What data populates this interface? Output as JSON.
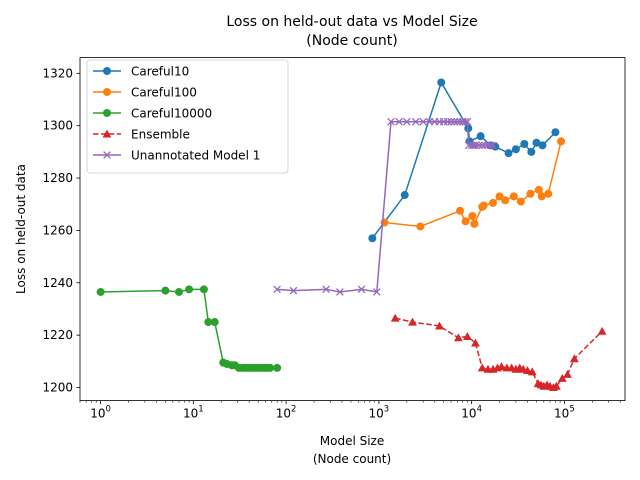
{
  "chart_data": {
    "type": "line",
    "title": [
      "Loss on held-out data vs Model Size",
      "(Node count)"
    ],
    "xlabel": [
      "Model Size",
      "(Node count)"
    ],
    "ylabel": "Loss on held-out data",
    "xscale": "log",
    "xlim": [
      0.6,
      450000
    ],
    "ylim": [
      1195,
      1326
    ],
    "xticks": [
      {
        "value": 1,
        "base": "10",
        "exp": "0"
      },
      {
        "value": 10,
        "base": "10",
        "exp": "1"
      },
      {
        "value": 100,
        "base": "10",
        "exp": "2"
      },
      {
        "value": 1000,
        "base": "10",
        "exp": "3"
      },
      {
        "value": 10000,
        "base": "10",
        "exp": "4"
      },
      {
        "value": 100000,
        "base": "10",
        "exp": "5"
      }
    ],
    "yticks": [
      1200,
      1220,
      1240,
      1260,
      1280,
      1300,
      1320
    ],
    "grid": false,
    "legend_position": "top-left",
    "series": [
      {
        "name": "Careful10",
        "color": "#1f77b4",
        "marker": "circle",
        "dash": "solid",
        "points": [
          [
            850,
            1257
          ],
          [
            1900,
            1273.5
          ],
          [
            4700,
            1316.5
          ],
          [
            9200,
            1299
          ],
          [
            9500,
            1294
          ],
          [
            12500,
            1296
          ],
          [
            16000,
            1292.5
          ],
          [
            18000,
            1292
          ],
          [
            25000,
            1289.5
          ],
          [
            30000,
            1291
          ],
          [
            37000,
            1293
          ],
          [
            44000,
            1290
          ],
          [
            50000,
            1293.5
          ],
          [
            58000,
            1292.5
          ],
          [
            80000,
            1297.5
          ]
        ]
      },
      {
        "name": "Careful100",
        "color": "#ff7f0e",
        "marker": "circle",
        "dash": "solid",
        "points": [
          [
            1150,
            1263
          ],
          [
            2800,
            1261.5
          ],
          [
            7500,
            1267.5
          ],
          [
            8600,
            1263.5
          ],
          [
            10200,
            1265.5
          ],
          [
            10700,
            1262.5
          ],
          [
            13000,
            1269
          ],
          [
            13500,
            1269.5
          ],
          [
            17000,
            1270.5
          ],
          [
            20000,
            1273
          ],
          [
            23000,
            1271.5
          ],
          [
            28500,
            1273
          ],
          [
            34000,
            1271
          ],
          [
            43000,
            1274
          ],
          [
            53000,
            1275.5
          ],
          [
            57000,
            1273
          ],
          [
            67000,
            1274
          ],
          [
            92000,
            1294
          ]
        ]
      },
      {
        "name": "Careful10000",
        "color": "#2ca02c",
        "marker": "circle",
        "dash": "solid",
        "points": [
          [
            1,
            1236.5
          ],
          [
            5,
            1237
          ],
          [
            7,
            1236.5
          ],
          [
            9,
            1237.5
          ],
          [
            13,
            1237.5
          ],
          [
            14.5,
            1225
          ],
          [
            17,
            1225
          ],
          [
            21,
            1209.5
          ],
          [
            23,
            1209
          ],
          [
            26,
            1208.5
          ],
          [
            28,
            1208.5
          ],
          [
            31,
            1207.5
          ],
          [
            34,
            1207.5
          ],
          [
            37,
            1207.5
          ],
          [
            40,
            1207.5
          ],
          [
            43,
            1207.5
          ],
          [
            46,
            1207.5
          ],
          [
            50,
            1207.5
          ],
          [
            54,
            1207.5
          ],
          [
            58,
            1207.5
          ],
          [
            62,
            1207.5
          ],
          [
            67,
            1207.5
          ],
          [
            80,
            1207.5
          ]
        ]
      },
      {
        "name": "Ensemble",
        "color": "#d62728",
        "marker": "triangle",
        "dash": "dashed",
        "points": [
          [
            1500,
            1226.5
          ],
          [
            2300,
            1225
          ],
          [
            4500,
            1223.5
          ],
          [
            7200,
            1219
          ],
          [
            9000,
            1219.5
          ],
          [
            11000,
            1217
          ],
          [
            13000,
            1207.5
          ],
          [
            15000,
            1207
          ],
          [
            17000,
            1207
          ],
          [
            19000,
            1207.5
          ],
          [
            21000,
            1208
          ],
          [
            24000,
            1207.5
          ],
          [
            27000,
            1207.5
          ],
          [
            30000,
            1207
          ],
          [
            33000,
            1207.5
          ],
          [
            36000,
            1207
          ],
          [
            40000,
            1206.5
          ],
          [
            45000,
            1206
          ],
          [
            52000,
            1201.5
          ],
          [
            56000,
            1201
          ],
          [
            60000,
            1200.5
          ],
          [
            65000,
            1201
          ],
          [
            70000,
            1200.5
          ],
          [
            76000,
            1200
          ],
          [
            82000,
            1200.5
          ],
          [
            95000,
            1203.5
          ],
          [
            108000,
            1205
          ],
          [
            128000,
            1211
          ],
          [
            255000,
            1221.5
          ]
        ]
      },
      {
        "name": "Unannotated Model 1",
        "color": "#9467bd",
        "marker": "x",
        "dash": "solid",
        "points": [
          [
            80,
            1237.5
          ],
          [
            120,
            1237
          ],
          [
            270,
            1237.5
          ],
          [
            380,
            1236.5
          ],
          [
            650,
            1237.5
          ],
          [
            950,
            1236.5
          ],
          [
            1350,
            1301.5
          ],
          [
            1650,
            1301.5
          ],
          [
            2000,
            1301.5
          ],
          [
            2500,
            1301.5
          ],
          [
            3000,
            1301.5
          ],
          [
            3500,
            1301.5
          ],
          [
            4000,
            1301.5
          ],
          [
            4500,
            1301.5
          ],
          [
            5000,
            1301.5
          ],
          [
            5500,
            1301.5
          ],
          [
            6000,
            1301.5
          ],
          [
            6500,
            1301.5
          ],
          [
            7000,
            1301.5
          ],
          [
            7500,
            1301.5
          ],
          [
            8000,
            1301.5
          ],
          [
            8500,
            1301.5
          ],
          [
            9000,
            1301.5
          ],
          [
            9300,
            1292.5
          ],
          [
            10000,
            1292.5
          ],
          [
            10500,
            1292.5
          ],
          [
            11000,
            1292.5
          ],
          [
            12000,
            1292.5
          ],
          [
            13000,
            1292.5
          ],
          [
            14000,
            1292.5
          ],
          [
            15000,
            1292.5
          ],
          [
            16000,
            1292.5
          ],
          [
            17000,
            1292.5
          ]
        ]
      }
    ]
  }
}
